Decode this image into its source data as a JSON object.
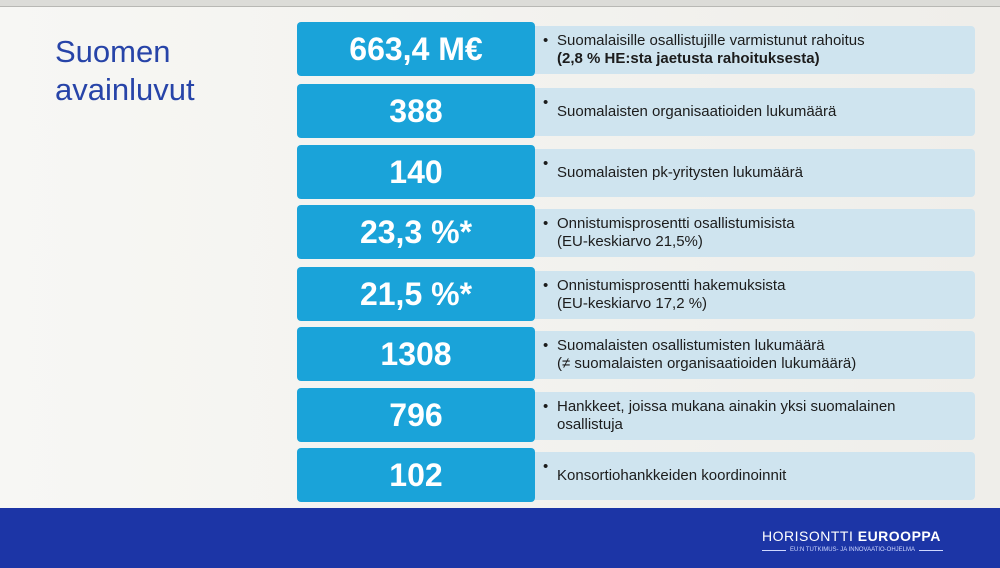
{
  "title": "Suomen avainluvut",
  "title_lines": [
    "Suomen",
    "avainluvut"
  ],
  "rows": [
    {
      "value": "663,4 M€",
      "lines": [
        "Suomalaisille osallistujille varmistunut rahoitus",
        "(2,8 % HE:sta jaetusta rahoituksesta)"
      ]
    },
    {
      "value": "388",
      "lines": [
        "Suomalaisten organisaatioiden lukumäärä"
      ]
    },
    {
      "value": "140",
      "lines": [
        "Suomalaisten pk-yritysten lukumäärä"
      ]
    },
    {
      "value": "23,3 %*",
      "lines": [
        "Onnistumisprosentti osallistumisista",
        "(EU-keskiarvo 21,5%)"
      ]
    },
    {
      "value": "21,5 %*",
      "lines": [
        "Onnistumisprosentti hakemuksista",
        "(EU-keskiarvo 17,2 %)"
      ]
    },
    {
      "value": "1308",
      "lines": [
        "Suomalaisten osallistumisten lukumäärä",
        "(≠ suomalaisten organisaatioiden lukumäärä)"
      ]
    },
    {
      "value": "796",
      "lines": [
        "Hankkeet, joissa mukana ainakin yksi suomalainen",
        "osallistuja"
      ]
    },
    {
      "value": "102",
      "lines": [
        "Konsortiohankkeiden koordinoinnit"
      ]
    }
  ],
  "footer": {
    "logo_main_1": "HORISONTTI",
    "logo_main_2": "EUROOPPA",
    "logo_sub": "EU:N TUTKIMUS- JA INNOVAATIO-OHJELMA"
  },
  "colors": {
    "accent": "#1aa3d9",
    "footer": "#1c35a6",
    "title": "#2744a8",
    "desc_bg": "#cfe4ef"
  }
}
